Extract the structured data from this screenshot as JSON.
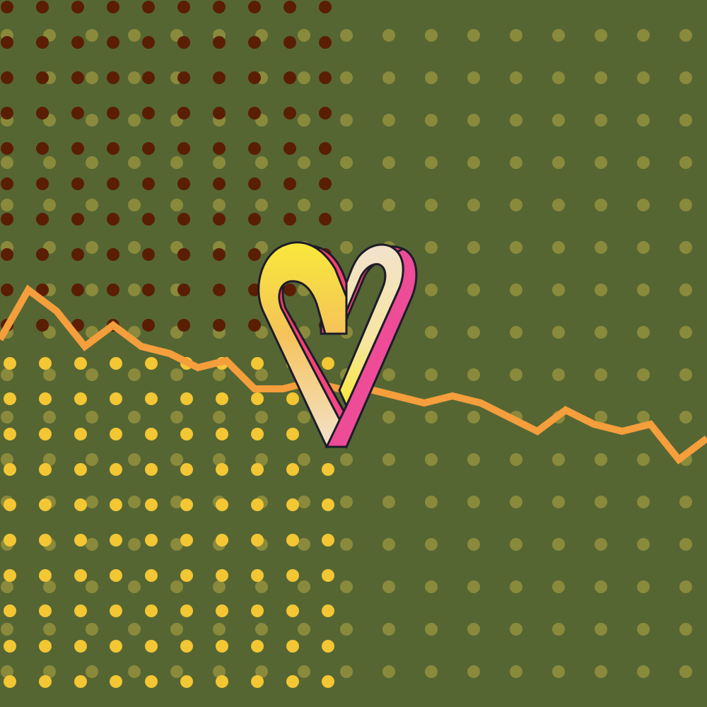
{
  "palette": {
    "background": "#556633",
    "olive_dots": "#8a8a3c",
    "brown_dots": "#5a1e05",
    "yellow_dots": "#f3c634",
    "trend_line": "#f59e3c",
    "heart_cream": "#f2e2cc",
    "heart_pink": "#ee4c97",
    "heart_yellow": "#f8e83a",
    "heart_outline": "#1c1c2a"
  },
  "trend_line": {
    "values": [
      0.52,
      0.59,
      0.56,
      0.51,
      0.54,
      0.51,
      0.5,
      0.48,
      0.49,
      0.45,
      0.45,
      0.46,
      0.45,
      0.45,
      0.44,
      0.43,
      0.44,
      0.43,
      0.41,
      0.39,
      0.42,
      0.4,
      0.39,
      0.4,
      0.35,
      0.38
    ]
  },
  "heart_logo": {
    "icon": "impossible-heart-logo"
  }
}
